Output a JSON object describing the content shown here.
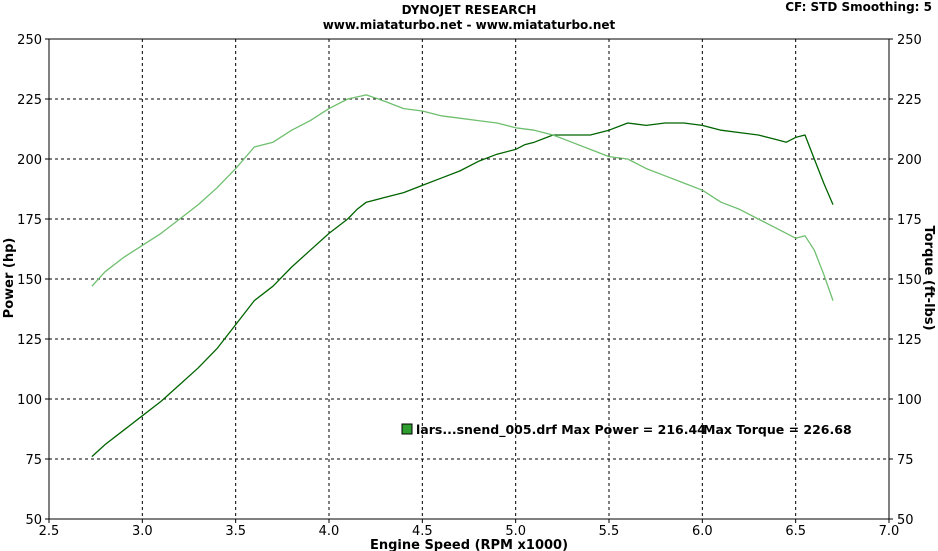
{
  "header": {
    "title": "DYNOJET RESEARCH",
    "subtitle": "www.miataturbo.net - www.miataturbo.net",
    "cf_smoothing": "CF: STD  Smoothing: 5"
  },
  "colors": {
    "power": "#006400",
    "torque": "#6fbf6f",
    "grid": "#000000",
    "legend_swatch": "#2e9e2e"
  },
  "chart_data": {
    "type": "line",
    "xlabel": "Engine Speed (RPM x1000)",
    "ylabel": "Power (hp)",
    "y2label": "Torque (ft-lbs)",
    "xlim": [
      2.5,
      7.0
    ],
    "ylim": [
      50,
      250
    ],
    "y2lim": [
      50,
      250
    ],
    "x_ticks": [
      "2.5",
      "3.0",
      "3.5",
      "4.0",
      "4.5",
      "5.0",
      "5.5",
      "6.0",
      "6.5",
      "7.0"
    ],
    "y_ticks": [
      "50",
      "75",
      "100",
      "125",
      "150",
      "175",
      "200",
      "225",
      "250"
    ],
    "grid": true,
    "legend": {
      "text": "lars...snend_005.drf Max Power = 216.44",
      "max_torque_text": "Max Torque = 226.68",
      "placement": "lower-center"
    },
    "series": [
      {
        "axis": "left",
        "x": [
          2.73,
          2.8,
          2.9,
          3.0,
          3.1,
          3.2,
          3.3,
          3.4,
          3.5,
          3.6,
          3.7,
          3.8,
          3.9,
          4.0,
          4.1,
          4.15,
          4.2,
          4.3,
          4.4,
          4.5,
          4.6,
          4.7,
          4.8,
          4.9,
          5.0,
          5.05,
          5.1,
          5.2,
          5.3,
          5.4,
          5.5,
          5.6,
          5.7,
          5.8,
          5.9,
          6.0,
          6.1,
          6.2,
          6.3,
          6.4,
          6.45,
          6.5,
          6.55,
          6.6,
          6.65,
          6.7
        ],
        "y": [
          76,
          81,
          87,
          93,
          99,
          106,
          113,
          121,
          131,
          141,
          147,
          155,
          162,
          169,
          175,
          179,
          182,
          184,
          186,
          189,
          192,
          195,
          199,
          202,
          204,
          206,
          207,
          210,
          210,
          210,
          212,
          215,
          214,
          215,
          215,
          214,
          212,
          211,
          210,
          208,
          207,
          209,
          210,
          200,
          190,
          181
        ]
      },
      {
        "axis": "right",
        "x": [
          2.73,
          2.8,
          2.9,
          3.0,
          3.1,
          3.2,
          3.3,
          3.4,
          3.5,
          3.6,
          3.7,
          3.8,
          3.9,
          4.0,
          4.1,
          4.2,
          4.3,
          4.4,
          4.5,
          4.6,
          4.7,
          4.8,
          4.9,
          5.0,
          5.1,
          5.2,
          5.3,
          5.4,
          5.5,
          5.6,
          5.7,
          5.8,
          5.9,
          6.0,
          6.1,
          6.2,
          6.3,
          6.4,
          6.5,
          6.55,
          6.6,
          6.65,
          6.7
        ],
        "y": [
          147,
          153,
          159,
          164,
          169,
          175,
          181,
          188,
          196,
          205,
          207,
          212,
          216,
          221,
          225,
          226.7,
          224,
          221,
          220,
          218,
          217,
          216,
          215,
          213,
          212,
          210,
          207,
          204,
          201,
          200,
          196,
          193,
          190,
          187,
          182,
          179,
          175,
          171,
          167,
          168,
          162,
          152,
          141
        ]
      }
    ]
  }
}
